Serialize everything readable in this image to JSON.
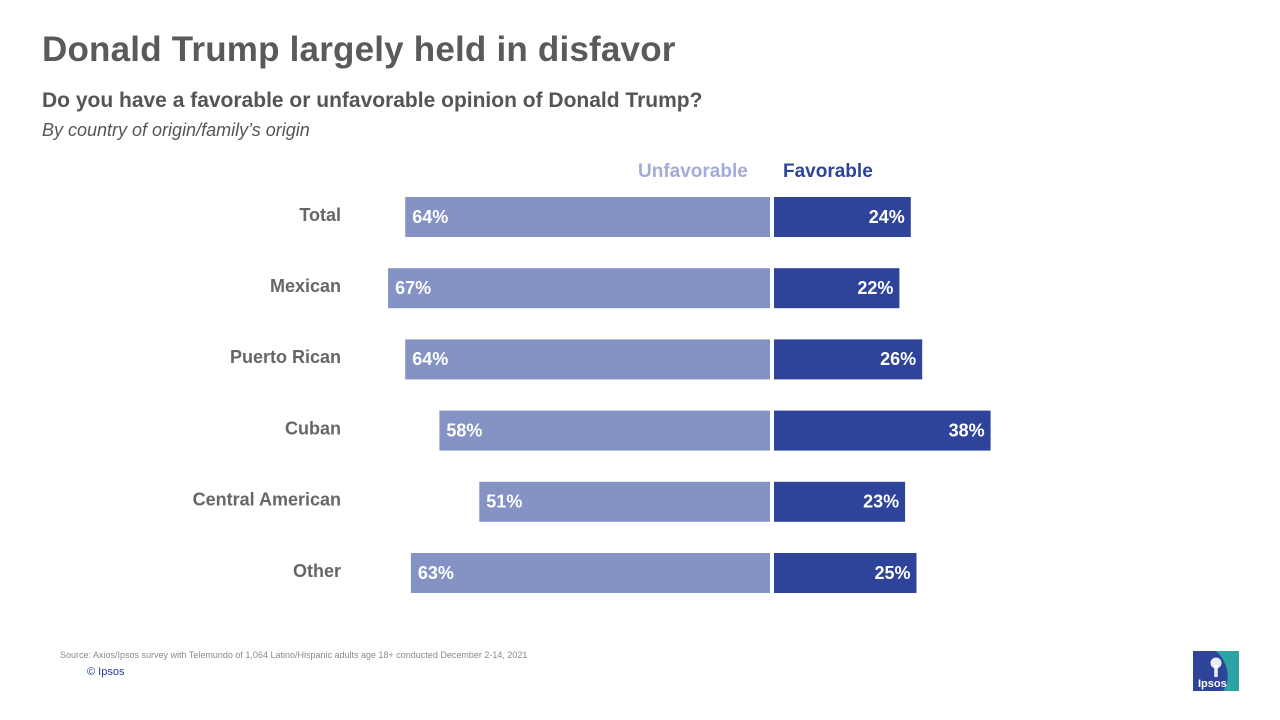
{
  "title": "Donald Trump largely held in disfavor",
  "subtitle": "Do you have a favorable or unfavorable opinion of Donald Trump?",
  "subsubtitle": "By country of origin/family’s origin",
  "legend": {
    "unfavorable": "Unfavorable",
    "favorable": "Favorable"
  },
  "colors": {
    "unfavorable": "#8492c4",
    "favorable": "#2e449a",
    "category_text": "#666666",
    "title_text": "#5a5a5a"
  },
  "chart_data": {
    "type": "bar",
    "orientation": "horizontal-diverging",
    "categories": [
      "Total",
      "Mexican",
      "Puerto Rican",
      "Cuban",
      "Central American",
      "Other"
    ],
    "series": [
      {
        "name": "Unfavorable",
        "values": [
          64,
          67,
          64,
          58,
          51,
          63
        ],
        "labels": [
          "64%",
          "67%",
          "64%",
          "58%",
          "51%",
          "63%"
        ]
      },
      {
        "name": "Favorable",
        "values": [
          24,
          22,
          26,
          38,
          23,
          25
        ],
        "labels": [
          "24%",
          "22%",
          "26%",
          "38%",
          "23%",
          "25%"
        ]
      }
    ],
    "unit": "%",
    "legend_position": "top",
    "grid": false
  },
  "footer": {
    "source": "Source: Axios/Ipsos survey with Telemundo of 1,064 Latino/Hispanic adults age 18+ conducted December 2-14, 2021",
    "copyright": "© Ipsos"
  },
  "logo": {
    "text": "Ipsos",
    "icon": "ipsos-logo-icon"
  }
}
